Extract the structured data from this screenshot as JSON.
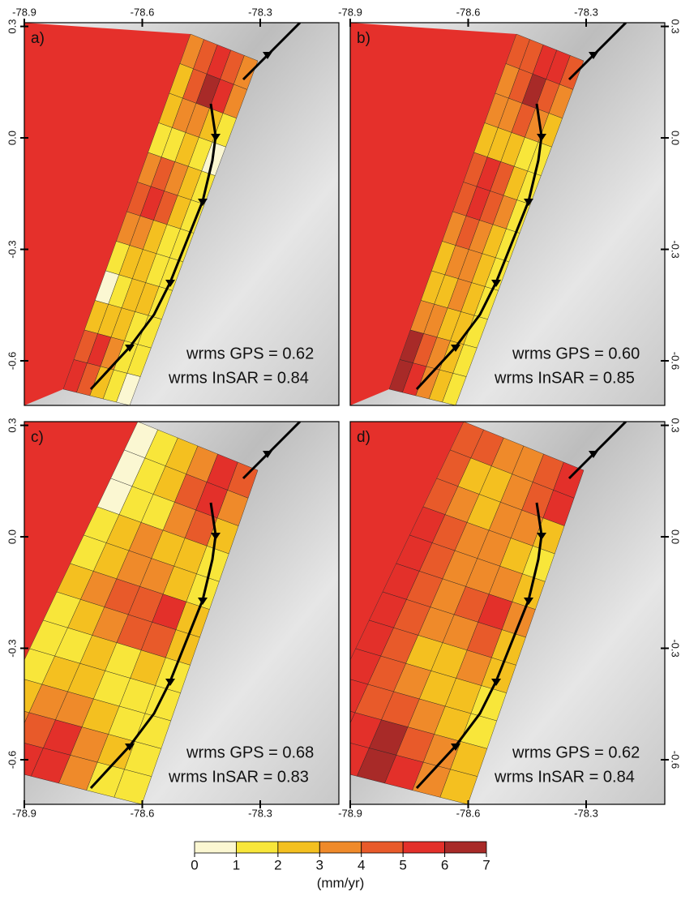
{
  "map": {
    "xlim": [
      -78.9,
      -78.1
    ],
    "ylim": [
      -0.72,
      0.31
    ],
    "xticks": [
      -78.9,
      -78.6,
      -78.3
    ],
    "yticks": [
      0.3,
      {
        "value": 0,
        "label": "0.0"
      },
      -0.3,
      -0.6
    ],
    "background_fill": "#e5302b"
  },
  "panels": [
    {
      "label": "a)",
      "wrms_gps": "wrms GPS = 0.62",
      "wrms_insar": "wrms InSAR = 0.84",
      "values": [
        [
          3,
          4,
          5,
          4,
          3
        ],
        [
          2,
          4,
          6,
          5,
          3
        ],
        [
          2,
          3,
          3,
          2,
          1
        ],
        [
          1,
          1,
          2,
          1,
          0
        ],
        [
          3,
          4,
          3,
          2,
          1
        ],
        [
          4,
          5,
          4,
          2,
          1
        ],
        [
          3,
          3,
          2,
          1,
          1
        ],
        [
          1,
          2,
          2,
          1,
          1
        ],
        [
          0,
          1,
          2,
          2,
          1
        ],
        [
          2,
          2,
          2,
          1,
          1
        ],
        [
          4,
          5,
          3,
          1,
          1
        ],
        [
          5,
          4,
          2,
          1,
          0
        ]
      ]
    },
    {
      "label": "b)",
      "wrms_gps": "wrms GPS = 0.60",
      "wrms_insar": "wrms InSAR = 0.85",
      "values": [
        [
          4,
          4,
          5,
          5,
          4
        ],
        [
          3,
          4,
          6,
          4,
          3
        ],
        [
          3,
          3,
          4,
          3,
          2
        ],
        [
          2,
          2,
          2,
          1,
          1
        ],
        [
          4,
          5,
          4,
          2,
          1
        ],
        [
          4,
          5,
          4,
          3,
          1
        ],
        [
          3,
          4,
          3,
          2,
          1
        ],
        [
          2,
          3,
          3,
          2,
          1
        ],
        [
          2,
          2,
          3,
          2,
          1
        ],
        [
          3,
          3,
          2,
          2,
          1
        ],
        [
          6,
          4,
          3,
          2,
          1
        ],
        [
          6,
          5,
          3,
          2,
          1
        ]
      ]
    },
    {
      "label": "c)",
      "wrms_gps": "wrms GPS = 0.68",
      "wrms_insar": "wrms InSAR = 0.83",
      "values": [
        [
          0,
          1,
          2,
          3,
          5,
          4
        ],
        [
          0,
          1,
          2,
          4,
          5,
          3
        ],
        [
          0,
          1,
          1,
          3,
          4,
          2
        ],
        [
          1,
          2,
          3,
          2,
          2,
          1
        ],
        [
          1,
          2,
          3,
          3,
          2,
          1
        ],
        [
          2,
          3,
          4,
          4,
          5,
          2
        ],
        [
          1,
          2,
          3,
          4,
          4,
          2
        ],
        [
          1,
          1,
          2,
          1,
          2,
          1
        ],
        [
          1,
          2,
          2,
          1,
          1,
          1
        ],
        [
          2,
          3,
          3,
          2,
          1,
          1
        ],
        [
          3,
          4,
          5,
          3,
          2,
          1
        ],
        [
          4,
          5,
          5,
          3,
          1,
          1
        ]
      ]
    },
    {
      "label": "d)",
      "wrms_gps": "wrms GPS = 0.62",
      "wrms_insar": "wrms InSAR = 0.84",
      "values": [
        [
          4,
          4,
          3,
          3,
          4,
          5
        ],
        [
          4,
          2,
          2,
          3,
          4,
          5
        ],
        [
          4,
          3,
          2,
          3,
          3,
          2
        ],
        [
          5,
          4,
          3,
          3,
          2,
          1
        ],
        [
          5,
          4,
          3,
          3,
          3,
          2
        ],
        [
          5,
          4,
          3,
          4,
          5,
          3
        ],
        [
          5,
          4,
          3,
          3,
          4,
          2
        ],
        [
          5,
          4,
          2,
          2,
          3,
          2
        ],
        [
          5,
          4,
          3,
          2,
          2,
          1
        ],
        [
          5,
          4,
          4,
          3,
          2,
          1
        ],
        [
          5,
          5,
          6,
          4,
          3,
          2
        ],
        [
          5,
          5,
          6,
          5,
          3,
          2
        ]
      ]
    }
  ],
  "colorbar": {
    "label": "(mm/yr)",
    "ticks": [
      0,
      1,
      2,
      3,
      4,
      5,
      6,
      7
    ],
    "colors": [
      "#fbf7d2",
      "#f8e63a",
      "#f4c020",
      "#ef8a2a",
      "#e85a2a",
      "#e3302a",
      "#a82a28",
      "#5a1010"
    ]
  }
}
